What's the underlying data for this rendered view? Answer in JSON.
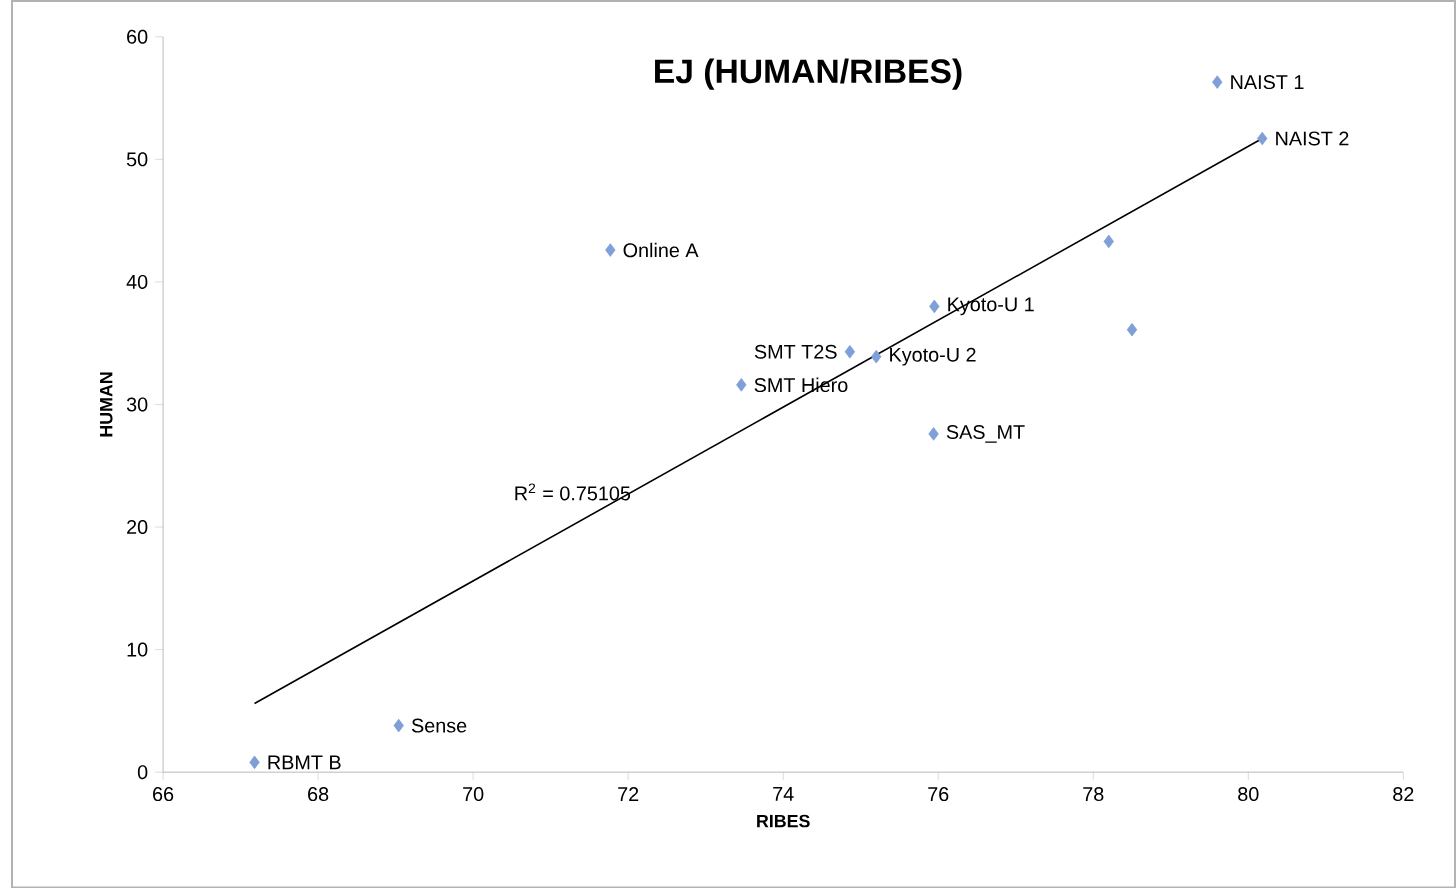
{
  "chart_data": {
    "type": "scatter",
    "title": "EJ (HUMAN/RIBES)",
    "xlabel": "RIBES",
    "ylabel": "HUMAN",
    "xlim": [
      66,
      82
    ],
    "ylim": [
      0,
      60
    ],
    "xticks": [
      66,
      68,
      70,
      72,
      74,
      76,
      78,
      80,
      82
    ],
    "yticks": [
      0,
      10,
      20,
      30,
      40,
      50,
      60
    ],
    "marker": "diamond",
    "series": [
      {
        "color": "#7f9fd8",
        "x": [
          79.6,
          80.18,
          78.2,
          78.5,
          71.77,
          75.95,
          74.86,
          75.2,
          73.46,
          75.94,
          69.04,
          67.18
        ],
        "values": [
          56.3,
          51.7,
          43.3,
          36.1,
          42.6,
          38.0,
          34.3,
          33.9,
          31.6,
          27.6,
          3.8,
          0.8
        ]
      },
      {
        "type": "line",
        "marker": "none",
        "color": "#000000",
        "x": [
          67.18,
          80.18
        ],
        "values": [
          5.6,
          51.7
        ]
      }
    ],
    "annotations": [
      {
        "text": "NAIST 1",
        "x": 79.6,
        "y": 56.3
      },
      {
        "text": "NAIST 2",
        "x": 80.18,
        "y": 51.7
      },
      {
        "text": "Online A",
        "x": 71.77,
        "y": 42.6
      },
      {
        "text": "Kyoto-U 1",
        "x": 75.95,
        "y": 38.0
      },
      {
        "text": "SMT T2S",
        "x": 74.86,
        "y": 34.3
      },
      {
        "text": "Kyoto-U 2",
        "x": 75.2,
        "y": 33.9
      },
      {
        "text": "SMT Hiero",
        "x": 73.46,
        "y": 31.6
      },
      {
        "text": "SAS_MT",
        "x": 75.94,
        "y": 27.6
      },
      {
        "text": "Sense",
        "x": 69.04,
        "y": 3.8
      },
      {
        "text": "RBMT B",
        "x": 67.18,
        "y": 0.8
      },
      "R$^{2}$ = 0.75105"
    ]
  }
}
